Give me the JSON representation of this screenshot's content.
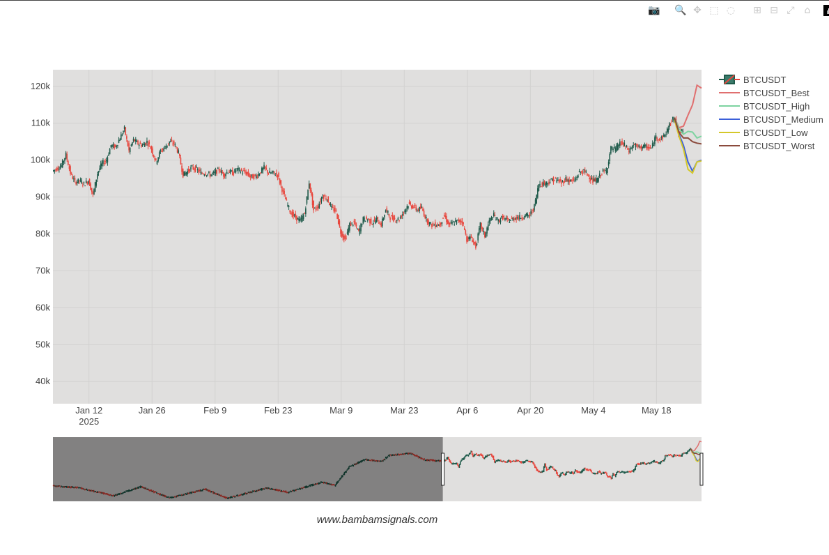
{
  "modebar": {
    "icons": [
      "camera-icon",
      "zoom-icon",
      "pan-icon",
      "box-select-icon",
      "lasso-icon",
      "zoom-in-icon",
      "zoom-out-icon",
      "autoscale-icon",
      "home-icon",
      "plotly-logo-icon"
    ],
    "glyphs": [
      "📷",
      "🔍",
      "✥",
      "⬚",
      "◌",
      "⊞",
      "⊟",
      "⤢",
      "⌂"
    ]
  },
  "chart_data": {
    "type": "candlestick",
    "title": "",
    "xlabel": "",
    "ylabel": "",
    "ylim": [
      34000,
      124500
    ],
    "xrange": [
      "2025-01-04",
      "2025-05-28"
    ],
    "y_ticks": [
      {
        "value": 40000,
        "label": "40k"
      },
      {
        "value": 50000,
        "label": "50k"
      },
      {
        "value": 60000,
        "label": "60k"
      },
      {
        "value": 70000,
        "label": "70k"
      },
      {
        "value": 80000,
        "label": "80k"
      },
      {
        "value": 90000,
        "label": "90k"
      },
      {
        "value": 100000,
        "label": "100k"
      },
      {
        "value": 110000,
        "label": "110k"
      },
      {
        "value": 120000,
        "label": "120k"
      }
    ],
    "x_ticks": [
      {
        "date": "2025-01-12",
        "label": "Jan 12",
        "sub": "2025"
      },
      {
        "date": "2025-01-26",
        "label": "Jan 26",
        "sub": ""
      },
      {
        "date": "2025-02-09",
        "label": "Feb 9",
        "sub": ""
      },
      {
        "date": "2025-02-23",
        "label": "Feb 23",
        "sub": ""
      },
      {
        "date": "2025-03-09",
        "label": "Mar 9",
        "sub": ""
      },
      {
        "date": "2025-03-23",
        "label": "Mar 23",
        "sub": ""
      },
      {
        "date": "2025-04-06",
        "label": "Apr 6",
        "sub": ""
      },
      {
        "date": "2025-04-20",
        "label": "Apr 20",
        "sub": ""
      },
      {
        "date": "2025-05-04",
        "label": "May 4",
        "sub": ""
      },
      {
        "date": "2025-05-18",
        "label": "May 18",
        "sub": ""
      }
    ],
    "price_path": [
      [
        "2025-01-04",
        97000
      ],
      [
        "2025-01-06",
        98500
      ],
      [
        "2025-01-07",
        101500
      ],
      [
        "2025-01-08",
        96500
      ],
      [
        "2025-01-09",
        94000
      ],
      [
        "2025-01-10",
        94500
      ],
      [
        "2025-01-11",
        93500
      ],
      [
        "2025-01-12",
        94500
      ],
      [
        "2025-01-13",
        90500
      ],
      [
        "2025-01-14",
        96500
      ],
      [
        "2025-01-15",
        99000
      ],
      [
        "2025-01-16",
        100000
      ],
      [
        "2025-01-17",
        104000
      ],
      [
        "2025-01-18",
        103500
      ],
      [
        "2025-01-19",
        106000
      ],
      [
        "2025-01-20",
        108500
      ],
      [
        "2025-01-21",
        102500
      ],
      [
        "2025-01-22",
        105500
      ],
      [
        "2025-01-23",
        104500
      ],
      [
        "2025-01-24",
        104000
      ],
      [
        "2025-01-25",
        105000
      ],
      [
        "2025-01-26",
        103000
      ],
      [
        "2025-01-27",
        99500
      ],
      [
        "2025-01-28",
        102500
      ],
      [
        "2025-01-29",
        103500
      ],
      [
        "2025-01-30",
        105000
      ],
      [
        "2025-01-31",
        104500
      ],
      [
        "2025-02-01",
        102000
      ],
      [
        "2025-02-02",
        96000
      ],
      [
        "2025-02-03",
        97000
      ],
      [
        "2025-02-04",
        98000
      ],
      [
        "2025-02-05",
        97500
      ],
      [
        "2025-02-06",
        96500
      ],
      [
        "2025-02-07",
        96500
      ],
      [
        "2025-02-08",
        96000
      ],
      [
        "2025-02-09",
        96500
      ],
      [
        "2025-02-10",
        97500
      ],
      [
        "2025-02-11",
        96000
      ],
      [
        "2025-02-12",
        97000
      ],
      [
        "2025-02-13",
        96500
      ],
      [
        "2025-02-14",
        97500
      ],
      [
        "2025-02-15",
        97000
      ],
      [
        "2025-02-16",
        96500
      ],
      [
        "2025-02-17",
        95500
      ],
      [
        "2025-02-18",
        95500
      ],
      [
        "2025-02-19",
        96500
      ],
      [
        "2025-02-20",
        98000
      ],
      [
        "2025-02-21",
        96500
      ],
      [
        "2025-02-22",
        96500
      ],
      [
        "2025-02-23",
        96000
      ],
      [
        "2025-02-24",
        92000
      ],
      [
        "2025-02-25",
        88500
      ],
      [
        "2025-02-26",
        85500
      ],
      [
        "2025-02-27",
        84500
      ],
      [
        "2025-02-28",
        83500
      ],
      [
        "2025-03-01",
        85500
      ],
      [
        "2025-03-02",
        94000
      ],
      [
        "2025-03-03",
        86500
      ],
      [
        "2025-03-04",
        87500
      ],
      [
        "2025-03-05",
        90500
      ],
      [
        "2025-03-06",
        89500
      ],
      [
        "2025-03-07",
        87000
      ],
      [
        "2025-03-08",
        86000
      ],
      [
        "2025-03-09",
        80500
      ],
      [
        "2025-03-10",
        78500
      ],
      [
        "2025-03-11",
        82500
      ],
      [
        "2025-03-12",
        83000
      ],
      [
        "2025-03-13",
        80500
      ],
      [
        "2025-03-14",
        84000
      ],
      [
        "2025-03-15",
        84000
      ],
      [
        "2025-03-16",
        83000
      ],
      [
        "2025-03-17",
        84000
      ],
      [
        "2025-03-18",
        82500
      ],
      [
        "2025-03-19",
        86500
      ],
      [
        "2025-03-20",
        84500
      ],
      [
        "2025-03-21",
        84000
      ],
      [
        "2025-03-22",
        84000
      ],
      [
        "2025-03-23",
        86000
      ],
      [
        "2025-03-24",
        88000
      ],
      [
        "2025-03-25",
        87500
      ],
      [
        "2025-03-26",
        86500
      ],
      [
        "2025-03-27",
        87000
      ],
      [
        "2025-03-28",
        84000
      ],
      [
        "2025-03-29",
        82500
      ],
      [
        "2025-03-30",
        82500
      ],
      [
        "2025-03-31",
        82500
      ],
      [
        "2025-04-01",
        85000
      ],
      [
        "2025-04-02",
        82500
      ],
      [
        "2025-04-03",
        83000
      ],
      [
        "2025-04-04",
        83500
      ],
      [
        "2025-04-05",
        83500
      ],
      [
        "2025-04-06",
        78500
      ],
      [
        "2025-04-07",
        79000
      ],
      [
        "2025-04-08",
        76500
      ],
      [
        "2025-04-09",
        82500
      ],
      [
        "2025-04-10",
        79500
      ],
      [
        "2025-04-11",
        83500
      ],
      [
        "2025-04-12",
        85000
      ],
      [
        "2025-04-13",
        83500
      ],
      [
        "2025-04-14",
        84500
      ],
      [
        "2025-04-15",
        83500
      ],
      [
        "2025-04-16",
        84000
      ],
      [
        "2025-04-17",
        84500
      ],
      [
        "2025-04-18",
        84500
      ],
      [
        "2025-04-19",
        85000
      ],
      [
        "2025-04-20",
        85000
      ],
      [
        "2025-04-21",
        87500
      ],
      [
        "2025-04-22",
        93500
      ],
      [
        "2025-04-23",
        93700
      ],
      [
        "2025-04-24",
        93900
      ],
      [
        "2025-04-25",
        94700
      ],
      [
        "2025-04-26",
        94600
      ],
      [
        "2025-04-27",
        93800
      ],
      [
        "2025-04-28",
        94900
      ],
      [
        "2025-04-29",
        94300
      ],
      [
        "2025-04-30",
        94500
      ],
      [
        "2025-05-01",
        96700
      ],
      [
        "2025-05-02",
        96900
      ],
      [
        "2025-05-03",
        95900
      ],
      [
        "2025-05-04",
        94300
      ],
      [
        "2025-05-05",
        94700
      ],
      [
        "2025-05-06",
        96800
      ],
      [
        "2025-05-07",
        97000
      ],
      [
        "2025-05-08",
        103200
      ],
      [
        "2025-05-09",
        102900
      ],
      [
        "2025-05-10",
        104600
      ],
      [
        "2025-05-11",
        104100
      ],
      [
        "2025-05-12",
        102500
      ],
      [
        "2025-05-13",
        104200
      ],
      [
        "2025-05-14",
        103500
      ],
      [
        "2025-05-15",
        103700
      ],
      [
        "2025-05-16",
        103500
      ],
      [
        "2025-05-17",
        103200
      ],
      [
        "2025-05-18",
        106400
      ],
      [
        "2025-05-19",
        105700
      ],
      [
        "2025-05-20",
        106800
      ],
      [
        "2025-05-21",
        109500
      ],
      [
        "2025-05-22",
        111500
      ],
      [
        "2025-05-23",
        107500
      ],
      [
        "2025-05-24",
        107800
      ]
    ],
    "series": [
      {
        "name": "BTCUSDT",
        "kind": "candlestick",
        "increasing_color": "#1e5a4a",
        "decreasing_color": "#e8453c"
      },
      {
        "name": "BTCUSDT_Best",
        "kind": "line",
        "color": "#e06f6f",
        "points": [
          [
            "2025-05-22",
            111500
          ],
          [
            "2025-05-23",
            108800
          ],
          [
            "2025-05-24",
            109200
          ],
          [
            "2025-05-25",
            112200
          ],
          [
            "2025-05-26",
            115000
          ],
          [
            "2025-05-27",
            120300
          ],
          [
            "2025-05-28",
            119500
          ]
        ]
      },
      {
        "name": "BTCUSDT_High",
        "kind": "line",
        "color": "#7dd3a0",
        "points": [
          [
            "2025-05-22",
            111500
          ],
          [
            "2025-05-23",
            108500
          ],
          [
            "2025-05-24",
            107000
          ],
          [
            "2025-05-25",
            107800
          ],
          [
            "2025-05-26",
            107600
          ],
          [
            "2025-05-27",
            106000
          ],
          [
            "2025-05-28",
            106500
          ]
        ]
      },
      {
        "name": "BTCUSDT_Medium",
        "kind": "line",
        "color": "#3b5fd9",
        "points": [
          [
            "2025-05-22",
            111000
          ],
          [
            "2025-05-23",
            107000
          ],
          [
            "2025-05-24",
            104000
          ],
          [
            "2025-05-25",
            99500
          ],
          [
            "2025-05-26",
            97000
          ],
          [
            "2025-05-27",
            99500
          ],
          [
            "2025-05-28",
            100000
          ]
        ]
      },
      {
        "name": "BTCUSDT_Low",
        "kind": "line",
        "color": "#d4c82a",
        "points": [
          [
            "2025-05-22",
            111000
          ],
          [
            "2025-05-23",
            106500
          ],
          [
            "2025-05-24",
            103000
          ],
          [
            "2025-05-25",
            97500
          ],
          [
            "2025-05-26",
            96500
          ],
          [
            "2025-05-27",
            99500
          ],
          [
            "2025-05-28",
            99800
          ]
        ]
      },
      {
        "name": "BTCUSDT_Worst",
        "kind": "line",
        "color": "#8b4a3c",
        "points": [
          [
            "2025-05-22",
            111500
          ],
          [
            "2025-05-23",
            107500
          ],
          [
            "2025-05-24",
            106000
          ],
          [
            "2025-05-25",
            106000
          ],
          [
            "2025-05-26",
            105000
          ],
          [
            "2025-05-27",
            104600
          ],
          [
            "2025-05-28",
            104400
          ]
        ]
      }
    ],
    "rangeslider": {
      "visible": true,
      "selected_start": "2025-01-04",
      "selected_end": "2025-05-28",
      "full_start": "2024-06-01",
      "price_path": [
        [
          "2024-06-01",
          67800
        ],
        [
          "2024-06-15",
          66000
        ],
        [
          "2024-07-05",
          56500
        ],
        [
          "2024-07-20",
          67000
        ],
        [
          "2024-08-05",
          54000
        ],
        [
          "2024-08-25",
          64000
        ],
        [
          "2024-09-06",
          53500
        ],
        [
          "2024-09-28",
          65500
        ],
        [
          "2024-10-10",
          60500
        ],
        [
          "2024-10-29",
          72500
        ],
        [
          "2024-11-05",
          68500
        ],
        [
          "2024-11-13",
          90000
        ],
        [
          "2024-11-22",
          99000
        ],
        [
          "2024-12-01",
          96500
        ],
        [
          "2024-12-05",
          103500
        ],
        [
          "2024-12-17",
          106000
        ],
        [
          "2024-12-25",
          98500
        ],
        [
          "2025-01-04",
          97000
        ]
      ]
    },
    "legend_position": "right",
    "grid": true
  },
  "footer": {
    "text": "www.bambamsignals.com"
  }
}
